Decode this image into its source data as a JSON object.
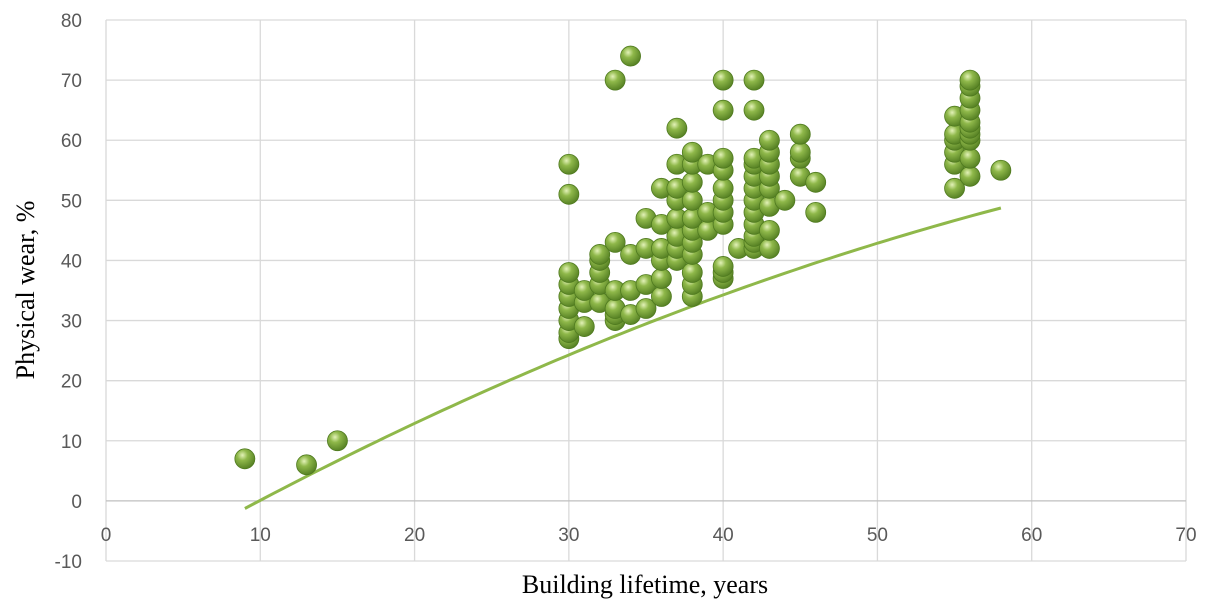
{
  "chart_data": {
    "type": "scatter",
    "xlabel": "Building lifetime, years",
    "ylabel": "Physical wear, %",
    "xlim": [
      0,
      70
    ],
    "ylim": [
      -10,
      80
    ],
    "xticks": [
      0,
      10,
      20,
      30,
      40,
      50,
      60,
      70
    ],
    "yticks": [
      -10,
      0,
      10,
      20,
      30,
      40,
      50,
      60,
      70,
      80
    ],
    "grid": true,
    "legend": "none",
    "colors": {
      "marker": "#8fb84a",
      "marker_highlight": "#e3f2b8",
      "marker_dark": "#4f7a1f",
      "trendline": "#8fb84a"
    },
    "points": [
      [
        9,
        7
      ],
      [
        13,
        6
      ],
      [
        15,
        10
      ],
      [
        30,
        27
      ],
      [
        30,
        28
      ],
      [
        30,
        30
      ],
      [
        30,
        32
      ],
      [
        30,
        34
      ],
      [
        30,
        36
      ],
      [
        30,
        38
      ],
      [
        30,
        51
      ],
      [
        30,
        56
      ],
      [
        31,
        29
      ],
      [
        31,
        33
      ],
      [
        31,
        35
      ],
      [
        32,
        33
      ],
      [
        32,
        36
      ],
      [
        32,
        38
      ],
      [
        32,
        40
      ],
      [
        32,
        41
      ],
      [
        33,
        30
      ],
      [
        33,
        31
      ],
      [
        33,
        32
      ],
      [
        33,
        35
      ],
      [
        33,
        43
      ],
      [
        33,
        70
      ],
      [
        34,
        31
      ],
      [
        34,
        35
      ],
      [
        34,
        41
      ],
      [
        34,
        74
      ],
      [
        35,
        32
      ],
      [
        35,
        36
      ],
      [
        35,
        42
      ],
      [
        35,
        47
      ],
      [
        36,
        34
      ],
      [
        36,
        37
      ],
      [
        36,
        40
      ],
      [
        36,
        42
      ],
      [
        36,
        46
      ],
      [
        36,
        52
      ],
      [
        37,
        40
      ],
      [
        37,
        42
      ],
      [
        37,
        44
      ],
      [
        37,
        47
      ],
      [
        37,
        50
      ],
      [
        37,
        52
      ],
      [
        37,
        56
      ],
      [
        37,
        62
      ],
      [
        38,
        34
      ],
      [
        38,
        36
      ],
      [
        38,
        38
      ],
      [
        38,
        41
      ],
      [
        38,
        43
      ],
      [
        38,
        45
      ],
      [
        38,
        47
      ],
      [
        38,
        50
      ],
      [
        38,
        53
      ],
      [
        38,
        56
      ],
      [
        38,
        58
      ],
      [
        39,
        45
      ],
      [
        39,
        48
      ],
      [
        39,
        56
      ],
      [
        40,
        37
      ],
      [
        40,
        38
      ],
      [
        40,
        39
      ],
      [
        40,
        46
      ],
      [
        40,
        48
      ],
      [
        40,
        50
      ],
      [
        40,
        52
      ],
      [
        40,
        55
      ],
      [
        40,
        57
      ],
      [
        40,
        65
      ],
      [
        40,
        70
      ],
      [
        41,
        42
      ],
      [
        42,
        42
      ],
      [
        42,
        43
      ],
      [
        42,
        44
      ],
      [
        42,
        46
      ],
      [
        42,
        48
      ],
      [
        42,
        50
      ],
      [
        42,
        52
      ],
      [
        42,
        54
      ],
      [
        42,
        56
      ],
      [
        42,
        57
      ],
      [
        42,
        65
      ],
      [
        42,
        70
      ],
      [
        43,
        42
      ],
      [
        43,
        45
      ],
      [
        43,
        49
      ],
      [
        43,
        52
      ],
      [
        43,
        54
      ],
      [
        43,
        56
      ],
      [
        43,
        58
      ],
      [
        43,
        60
      ],
      [
        44,
        50
      ],
      [
        45,
        54
      ],
      [
        45,
        57
      ],
      [
        45,
        58
      ],
      [
        45,
        61
      ],
      [
        46,
        48
      ],
      [
        46,
        53
      ],
      [
        55,
        52
      ],
      [
        55,
        56
      ],
      [
        55,
        58
      ],
      [
        55,
        60
      ],
      [
        55,
        61
      ],
      [
        55,
        64
      ],
      [
        56,
        54
      ],
      [
        56,
        57
      ],
      [
        56,
        60
      ],
      [
        56,
        61
      ],
      [
        56,
        62
      ],
      [
        56,
        63
      ],
      [
        56,
        65
      ],
      [
        56,
        67
      ],
      [
        56,
        69
      ],
      [
        56,
        70
      ],
      [
        58,
        55
      ]
    ],
    "trendline": {
      "type": "polynomial",
      "x_range": [
        9,
        58
      ],
      "coefficients": [
        -14.1,
        1.4893,
        -0.007
      ]
    }
  }
}
